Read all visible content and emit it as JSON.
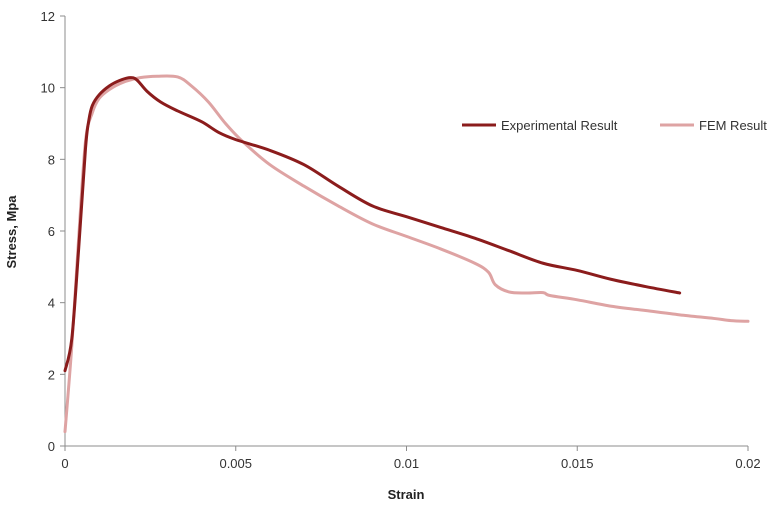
{
  "chart_data": {
    "type": "line",
    "xlabel": "Strain",
    "ylabel": "Stress, Mpa",
    "xlim": [
      0,
      0.02
    ],
    "ylim": [
      0,
      12
    ],
    "x_ticks": [
      0,
      0.005,
      0.01,
      0.015,
      0.02
    ],
    "x_tick_labels": [
      "0",
      "0.005",
      "0.01",
      "0.015",
      "0.02"
    ],
    "y_ticks": [
      0,
      2,
      4,
      6,
      8,
      10,
      12
    ],
    "y_tick_labels": [
      "0",
      "2",
      "4",
      "6",
      "8",
      "10",
      "12"
    ],
    "grid": false,
    "legend": "right",
    "series": [
      {
        "name": "Experimental Result",
        "color": "#8b1c1c",
        "points": [
          [
            0,
            2.1
          ],
          [
            0.0002,
            3.0
          ],
          [
            0.0004,
            5.5
          ],
          [
            0.0006,
            8.3
          ],
          [
            0.0007,
            9.1
          ],
          [
            0.0008,
            9.5
          ],
          [
            0.001,
            9.8
          ],
          [
            0.0013,
            10.05
          ],
          [
            0.0016,
            10.2
          ],
          [
            0.0019,
            10.28
          ],
          [
            0.0021,
            10.22
          ],
          [
            0.0024,
            9.9
          ],
          [
            0.0028,
            9.6
          ],
          [
            0.0033,
            9.35
          ],
          [
            0.004,
            9.05
          ],
          [
            0.0045,
            8.75
          ],
          [
            0.005,
            8.55
          ],
          [
            0.006,
            8.25
          ],
          [
            0.007,
            7.85
          ],
          [
            0.008,
            7.25
          ],
          [
            0.009,
            6.7
          ],
          [
            0.01,
            6.4
          ],
          [
            0.011,
            6.1
          ],
          [
            0.012,
            5.8
          ],
          [
            0.013,
            5.45
          ],
          [
            0.014,
            5.1
          ],
          [
            0.015,
            4.9
          ],
          [
            0.016,
            4.65
          ],
          [
            0.017,
            4.45
          ],
          [
            0.018,
            4.27
          ]
        ]
      },
      {
        "name": "FEM Result",
        "color": "#dea3a3",
        "points": [
          [
            0,
            0.4
          ],
          [
            0.0002,
            2.8
          ],
          [
            0.0004,
            5.8
          ],
          [
            0.0006,
            8.5
          ],
          [
            0.0008,
            9.3
          ],
          [
            0.001,
            9.7
          ],
          [
            0.0013,
            9.95
          ],
          [
            0.0017,
            10.15
          ],
          [
            0.0022,
            10.28
          ],
          [
            0.0027,
            10.32
          ],
          [
            0.0033,
            10.3
          ],
          [
            0.0037,
            10.05
          ],
          [
            0.0042,
            9.6
          ],
          [
            0.0047,
            9.0
          ],
          [
            0.0052,
            8.5
          ],
          [
            0.006,
            7.85
          ],
          [
            0.007,
            7.25
          ],
          [
            0.008,
            6.7
          ],
          [
            0.009,
            6.2
          ],
          [
            0.01,
            5.85
          ],
          [
            0.011,
            5.5
          ],
          [
            0.012,
            5.1
          ],
          [
            0.0124,
            4.85
          ],
          [
            0.0126,
            4.5
          ],
          [
            0.013,
            4.3
          ],
          [
            0.0135,
            4.27
          ],
          [
            0.014,
            4.28
          ],
          [
            0.0142,
            4.2
          ],
          [
            0.015,
            4.08
          ],
          [
            0.016,
            3.9
          ],
          [
            0.017,
            3.78
          ],
          [
            0.018,
            3.66
          ],
          [
            0.019,
            3.56
          ],
          [
            0.0195,
            3.5
          ],
          [
            0.02,
            3.48
          ]
        ]
      }
    ]
  }
}
